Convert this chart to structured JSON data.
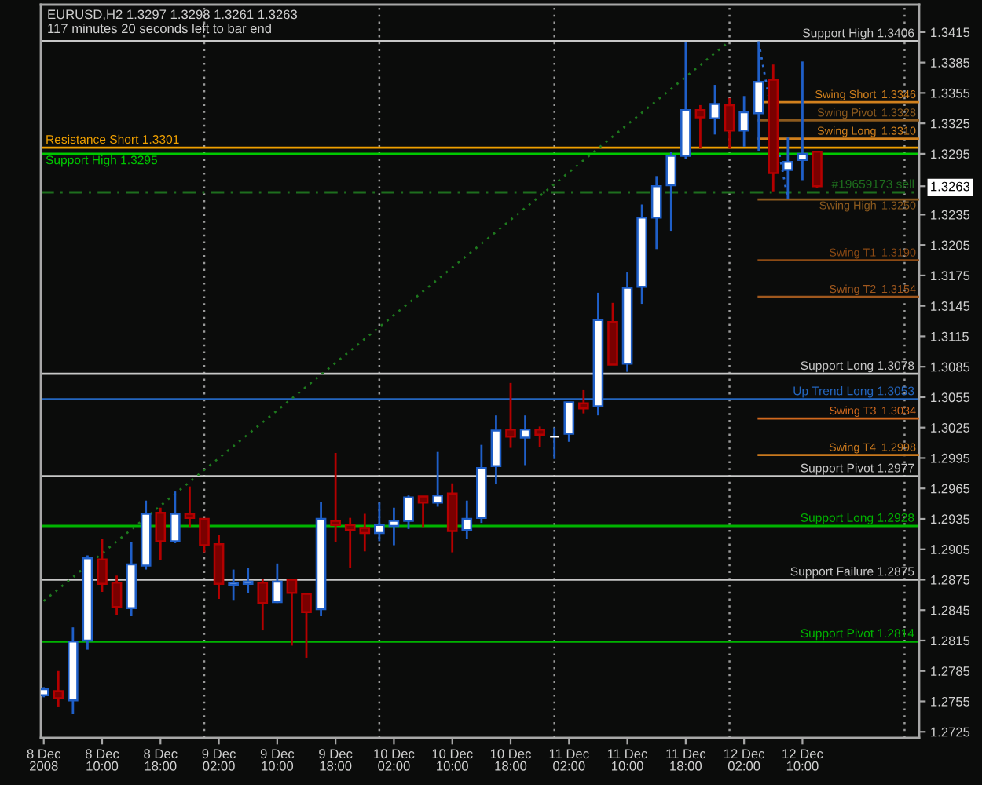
{
  "chart_data": {
    "type": "candlestick",
    "title": "EURUSD,H2 1.3297 1.3298 1.3261 1.3263",
    "subtitle": "117 minutes 20 seconds left to bar end",
    "xlim": [
      "2008-12-08T01:36",
      "2008-12-13T02:00"
    ],
    "ylim": [
      1.2719,
      1.3442
    ],
    "xticks": [
      {
        "value": "2008-12-08T02:00",
        "label": "8 Dec 2008"
      },
      {
        "value": "2008-12-08T10:00",
        "label": "8 Dec 10:00"
      },
      {
        "value": "2008-12-08T18:00",
        "label": "8 Dec 18:00"
      },
      {
        "value": "2008-12-09T02:00",
        "label": "9 Dec 02:00"
      },
      {
        "value": "2008-12-09T10:00",
        "label": "9 Dec 10:00"
      },
      {
        "value": "2008-12-09T18:00",
        "label": "9 Dec 18:00"
      },
      {
        "value": "2008-12-10T02:00",
        "label": "10 Dec 02:00"
      },
      {
        "value": "2008-12-10T10:00",
        "label": "10 Dec 10:00"
      },
      {
        "value": "2008-12-10T18:00",
        "label": "10 Dec 18:00"
      },
      {
        "value": "2008-12-11T02:00",
        "label": "11 Dec 02:00"
      },
      {
        "value": "2008-12-11T10:00",
        "label": "11 Dec 10:00"
      },
      {
        "value": "2008-12-11T18:00",
        "label": "11 Dec 18:00"
      },
      {
        "value": "2008-12-12T02:00",
        "label": "12 Dec 02:00"
      },
      {
        "value": "2008-12-12T10:00",
        "label": "12 Dec 10:00"
      }
    ],
    "yticks": [
      1.2725,
      1.2755,
      1.2785,
      1.2815,
      1.2845,
      1.2875,
      1.2905,
      1.2935,
      1.2965,
      1.2995,
      1.3025,
      1.3055,
      1.3085,
      1.3115,
      1.3145,
      1.3175,
      1.3205,
      1.3235,
      1.3263,
      1.3295,
      1.3325,
      1.3355,
      1.3385,
      1.3415
    ],
    "series": [
      {
        "color": "#1f5fc8",
        "x": [
          "2008-12-08T02:00",
          "2008-12-08T06:00",
          "2008-12-08T08:00",
          "2008-12-08T14:00",
          "2008-12-08T16:00",
          "2008-12-08T20:00",
          "2008-12-09T04:00",
          "2008-12-09T06:00",
          "2008-12-09T10:00",
          "2008-12-09T16:00",
          "2008-12-10T00:00",
          "2008-12-10T02:00",
          "2008-12-10T04:00",
          "2008-12-10T08:00",
          "2008-12-10T12:00",
          "2008-12-10T14:00",
          "2008-12-10T16:00",
          "2008-12-10T20:00",
          "2008-12-11T00:00",
          "2008-12-11T02:00",
          "2008-12-11T06:00",
          "2008-12-11T10:00",
          "2008-12-11T12:00",
          "2008-12-11T14:00",
          "2008-12-11T16:00",
          "2008-12-11T18:00",
          "2008-12-11T22:00",
          "2008-12-12T02:00",
          "2008-12-12T04:00",
          "2008-12-12T08:00",
          "2008-12-12T10:00"
        ],
        "ohlc": [
          [
            1.2761,
            1.2769,
            1.2759,
            1.2767
          ],
          [
            1.2756,
            1.2828,
            1.2743,
            1.2814
          ],
          [
            1.2815,
            1.2899,
            1.2806,
            1.2896
          ],
          [
            1.2847,
            1.2912,
            1.2839,
            1.289
          ],
          [
            1.2889,
            1.2953,
            1.2885,
            1.294
          ],
          [
            1.2913,
            1.2962,
            1.2911,
            1.294
          ],
          [
            1.287,
            1.2885,
            1.2855,
            1.2872
          ],
          [
            1.2871,
            1.2887,
            1.2862,
            1.2873
          ],
          [
            1.2853,
            1.2891,
            1.2852,
            1.2873
          ],
          [
            1.2846,
            1.2952,
            1.2839,
            1.2935
          ],
          [
            1.2921,
            1.2951,
            1.2913,
            1.2929
          ],
          [
            1.2928,
            1.2946,
            1.2909,
            1.2933
          ],
          [
            1.2933,
            1.2958,
            1.2925,
            1.2956
          ],
          [
            1.2951,
            1.3001,
            1.2947,
            1.2958
          ],
          [
            1.2924,
            1.2953,
            1.2915,
            1.2935
          ],
          [
            1.2936,
            1.3008,
            1.2931,
            1.2985
          ],
          [
            1.2987,
            1.3037,
            1.2969,
            1.3022
          ],
          [
            1.3015,
            1.3037,
            1.2988,
            1.3023
          ],
          [
            1.3016,
            1.3025,
            1.2994,
            1.3016
          ],
          [
            1.3019,
            1.305,
            1.3011,
            1.305
          ],
          [
            1.3046,
            1.3158,
            1.3037,
            1.3131
          ],
          [
            1.3088,
            1.3178,
            1.308,
            1.3163
          ],
          [
            1.3164,
            1.3245,
            1.3147,
            1.3232
          ],
          [
            1.3232,
            1.3273,
            1.3201,
            1.3263
          ],
          [
            1.3264,
            1.3297,
            1.3219,
            1.3293
          ],
          [
            1.3293,
            1.3405,
            1.329,
            1.3338
          ],
          [
            1.333,
            1.3363,
            1.3314,
            1.3344
          ],
          [
            1.3318,
            1.3352,
            1.3302,
            1.3336
          ],
          [
            1.3335,
            1.3406,
            1.3298,
            1.3366
          ],
          [
            1.3279,
            1.3311,
            1.325,
            1.3287
          ],
          [
            1.3289,
            1.3386,
            1.3269,
            1.3295
          ]
        ],
        "colors": [
          "#ffffff",
          "#ffffff",
          "#ffffff",
          "#ffffff",
          "#ffffff",
          "#ffffff",
          "#ffffff",
          "#ffffff",
          "#ffffff",
          "#ffffff",
          "#ffffff",
          "#ffffff",
          "#ffffff",
          "#ffffff",
          "#ffffff",
          "#ffffff",
          "#ffffff",
          "#ffffff",
          "#ffffff",
          "#ffffff",
          "#ffffff",
          "#ffffff",
          "#ffffff",
          "#ffffff",
          "#ffffff",
          "#ffffff",
          "#ffffff",
          "#ffffff",
          "#ffffff",
          "#ffffff",
          "#ffffff"
        ]
      },
      {
        "color": "#b40000",
        "x": [
          "2008-12-08T04:00",
          "2008-12-08T10:00",
          "2008-12-08T12:00",
          "2008-12-08T18:00",
          "2008-12-08T22:00",
          "2008-12-09T00:00",
          "2008-12-09T02:00",
          "2008-12-09T08:00",
          "2008-12-09T12:00",
          "2008-12-09T14:00",
          "2008-12-09T18:00",
          "2008-12-09T20:00",
          "2008-12-09T22:00",
          "2008-12-10T06:00",
          "2008-12-10T10:00",
          "2008-12-10T18:00",
          "2008-12-10T22:00",
          "2008-12-11T04:00",
          "2008-12-11T08:00",
          "2008-12-11T20:00",
          "2008-12-12T00:00",
          "2008-12-12T06:00",
          "2008-12-12T12:00"
        ],
        "ohlc": [
          [
            1.2765,
            1.2785,
            1.275,
            1.2758
          ],
          [
            1.2895,
            1.2915,
            1.2863,
            1.2871
          ],
          [
            1.2872,
            1.2879,
            1.284,
            1.2848
          ],
          [
            1.2941,
            1.2946,
            1.2894,
            1.2913
          ],
          [
            1.294,
            1.2967,
            1.2927,
            1.2936
          ],
          [
            1.2935,
            1.2935,
            1.2902,
            1.2909
          ],
          [
            1.291,
            1.2919,
            1.2856,
            1.2871
          ],
          [
            1.2872,
            1.2876,
            1.2825,
            1.2852
          ],
          [
            1.2875,
            1.2875,
            1.281,
            1.2862
          ],
          [
            1.2861,
            1.2861,
            1.2798,
            1.2843
          ],
          [
            1.2933,
            1.3,
            1.2912,
            1.2929
          ],
          [
            1.2929,
            1.2936,
            1.2887,
            1.2924
          ],
          [
            1.2926,
            1.294,
            1.2903,
            1.2921
          ],
          [
            1.2957,
            1.2957,
            1.2927,
            1.2951
          ],
          [
            1.296,
            1.297,
            1.2902,
            1.2923
          ],
          [
            1.3023,
            1.3069,
            1.3005,
            1.3016
          ],
          [
            1.3023,
            1.3026,
            1.3006,
            1.3018
          ],
          [
            1.3049,
            1.3062,
            1.3039,
            1.3044
          ],
          [
            1.3129,
            1.3148,
            1.3087,
            1.3087
          ],
          [
            1.3338,
            1.3343,
            1.3301,
            1.3331
          ],
          [
            1.3343,
            1.335,
            1.33,
            1.3318
          ],
          [
            1.3368,
            1.3383,
            1.3258,
            1.3276
          ],
          [
            1.3297,
            1.3298,
            1.3261,
            1.3263
          ]
        ],
        "colors": [
          "#7a0000",
          "#7a0000",
          "#7a0000",
          "#7a0000",
          "#7a0000",
          "#7a0000",
          "#7a0000",
          "#7a0000",
          "#7a0000",
          "#7a0000",
          "#7a0000",
          "#7a0000",
          "#7a0000",
          "#7a0000",
          "#7a0000",
          "#7a0000",
          "#7a0000",
          "#7a0000",
          "#7a0000",
          "#7a0000",
          "#7a0000",
          "#7a0000",
          "#7a0000"
        ]
      },
      {
        "type": "line",
        "line_style": "dotted",
        "color": "#1e7a1e",
        "x": [
          "2008-12-08T02:00",
          "2008-12-12T00:00"
        ],
        "values": [
          1.2854,
          1.3406
        ]
      },
      {
        "type": "line",
        "line_style": "dotted",
        "color": "#2a6ad0",
        "x": [
          "2008-12-12T04:00",
          "2008-12-12T08:00"
        ],
        "values": [
          1.3405,
          1.325
        ]
      },
      {
        "type": "line",
        "name": "Swing Short",
        "color": "#d2811e",
        "x": [
          "2008-12-12T04:00",
          "2008-12-13T02:00"
        ],
        "values": [
          1.3346,
          1.3346
        ],
        "value_labels": [
          null,
          "1.3346"
        ]
      },
      {
        "type": "line",
        "name": "Swing Pivot",
        "color": "#8c5a1e",
        "x": [
          "2008-12-12T04:00",
          "2008-12-13T02:00"
        ],
        "values": [
          1.3328,
          1.3328
        ],
        "value_labels": [
          null,
          "1.3328"
        ]
      },
      {
        "type": "line",
        "name": "Swing Long",
        "color": "#d2811e",
        "x": [
          "2008-12-12T04:00",
          "2008-12-13T02:00"
        ],
        "values": [
          1.331,
          1.331
        ],
        "value_labels": [
          null,
          "1.3310"
        ]
      },
      {
        "type": "line",
        "name": "Swing High",
        "color": "#8c5a1e",
        "x": [
          "2008-12-12T04:00",
          "2008-12-13T02:00"
        ],
        "values": [
          1.325,
          1.325
        ],
        "value_labels": [
          null,
          "1.3250"
        ]
      },
      {
        "type": "line",
        "name": "Swing T1",
        "color": "#8c4a14",
        "x": [
          "2008-12-12T04:00",
          "2008-12-13T02:00"
        ],
        "values": [
          1.319,
          1.319
        ],
        "value_labels": [
          null,
          "1.3190"
        ]
      },
      {
        "type": "line",
        "name": "Swing T2",
        "color": "#a0581e",
        "x": [
          "2008-12-12T04:00",
          "2008-12-13T02:00"
        ],
        "values": [
          1.3154,
          1.3154
        ],
        "value_labels": [
          null,
          "1.3154"
        ]
      },
      {
        "type": "line",
        "name": "Swing T3",
        "color": "#d2691e",
        "x": [
          "2008-12-12T04:00",
          "2008-12-13T02:00"
        ],
        "values": [
          1.3034,
          1.3034
        ],
        "value_labels": [
          null,
          "1.3034"
        ]
      },
      {
        "type": "line",
        "name": "Swing T4",
        "color": "#c8781e",
        "x": [
          "2008-12-12T04:00",
          "2008-12-13T02:00"
        ],
        "values": [
          1.2998,
          1.2998
        ],
        "value_labels": [
          null,
          "1.2998"
        ]
      }
    ],
    "ref_lines": [
      {
        "axis": "x",
        "value": "2008-12-09T00:00",
        "color": "#9a9a9a",
        "line_style": "dotted"
      },
      {
        "axis": "x",
        "value": "2008-12-10T00:00",
        "color": "#9a9a9a",
        "line_style": "dotted"
      },
      {
        "axis": "x",
        "value": "2008-12-11T00:00",
        "color": "#9a9a9a",
        "line_style": "dotted"
      },
      {
        "axis": "x",
        "value": "2008-12-12T00:00",
        "color": "#9a9a9a",
        "line_style": "dotted"
      },
      {
        "axis": "x",
        "value": "2008-12-13T00:00",
        "color": "#9a9a9a",
        "line_style": "dotted"
      },
      {
        "axis": "y",
        "value": 1.3406,
        "label": "Support High 1.3406",
        "color": "#c8c8c8"
      },
      {
        "axis": "y",
        "value": 1.3301,
        "label": "Resistance Short 1.3301",
        "color": "#f0a000"
      },
      {
        "axis": "y",
        "value": 1.3295,
        "label": "Support High 1.3295",
        "color": "#00c800"
      },
      {
        "axis": "y",
        "value": 1.3257,
        "label": "#19659173 sell",
        "color": "#1e6e1e",
        "line_style": "dashed"
      },
      {
        "axis": "y",
        "value": 1.3078,
        "label": "Support Long 1.3078",
        "color": "#c8c8c8"
      },
      {
        "axis": "y",
        "value": 1.3053,
        "label": "Up Trend Long 1.3053",
        "color": "#2466c0"
      },
      {
        "axis": "y",
        "value": 1.2977,
        "label": "Support Pivot 1.2977",
        "color": "#c8c8c8"
      },
      {
        "axis": "y",
        "value": 1.2928,
        "label": "Support Long 1.2928",
        "color": "#00b400"
      },
      {
        "axis": "y",
        "value": 1.2875,
        "label": "Support Failure 1.2875",
        "color": "#c8c8c8"
      },
      {
        "axis": "y",
        "value": 1.2814,
        "label": "Support Pivot 1.2814",
        "color": "#00b400"
      }
    ]
  }
}
